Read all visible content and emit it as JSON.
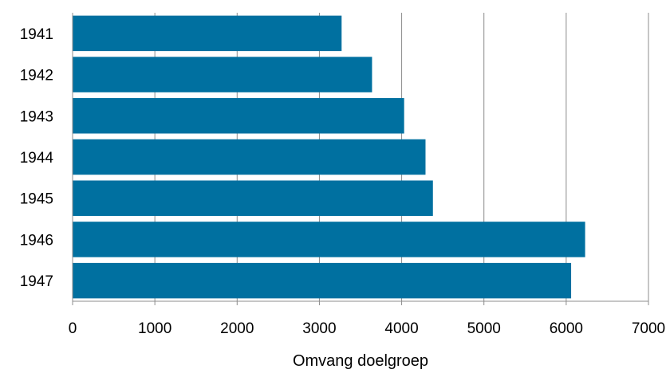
{
  "chart_data": {
    "type": "bar",
    "orientation": "horizontal",
    "categories": [
      "1941",
      "1942",
      "1943",
      "1944",
      "1945",
      "1946",
      "1947"
    ],
    "values": [
      3270,
      3640,
      4030,
      4290,
      4380,
      6230,
      6060
    ],
    "title": "",
    "xlabel": "Omvang doelgroep",
    "ylabel": "",
    "xlim": [
      0,
      7000
    ],
    "xticks": [
      "0",
      "1000",
      "2000",
      "3000",
      "4000",
      "5000",
      "6000",
      "7000"
    ],
    "grid": "vertical",
    "legend": "none",
    "bar_color": "#0070A0",
    "grid_color": "#8C8C8C"
  }
}
